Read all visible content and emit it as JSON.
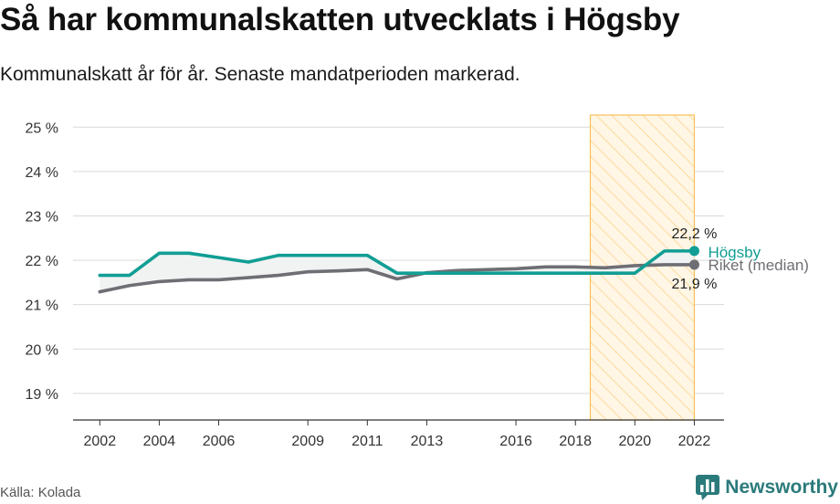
{
  "title": "Så har kommunalskatten utvecklats i Högsby",
  "subtitle": "Kommunalskatt år för år. Senaste mandatperioden markerad.",
  "source": "Källa: Kolada",
  "brand": {
    "name": "Newsworthy",
    "icon": "bar-chart-speech-bubble-icon"
  },
  "colors": {
    "hogsby": "#119e94",
    "riket": "#6e6e74",
    "highlight_fill": "#fff6e6",
    "highlight_stroke": "#f7c15a",
    "grid": "#d9d9d9",
    "brand": "#2b7a7b"
  },
  "chart_data": {
    "type": "line",
    "x_ticks": [
      2002,
      2004,
      2006,
      2009,
      2011,
      2013,
      2016,
      2018,
      2020,
      2022
    ],
    "y_ticks": [
      19,
      20,
      21,
      22,
      23,
      24,
      25
    ],
    "y_tick_labels": [
      "19 %",
      "20 %",
      "21 %",
      "22 %",
      "23 %",
      "24 %",
      "25 %"
    ],
    "ylim": [
      18.4,
      25.5
    ],
    "xlim": [
      2001.1,
      2023.0
    ],
    "highlight_range": [
      2018.5,
      2022
    ],
    "series": [
      {
        "name": "Högsby",
        "color_key": "hogsby",
        "x": [
          2002,
          2003,
          2004,
          2005,
          2006,
          2007,
          2008,
          2009,
          2010,
          2011,
          2012,
          2013,
          2014,
          2015,
          2016,
          2017,
          2018,
          2019,
          2020,
          2021,
          2022
        ],
        "values": [
          21.66,
          21.66,
          22.16,
          22.16,
          22.06,
          21.96,
          22.11,
          22.11,
          22.11,
          22.11,
          21.71,
          21.71,
          21.71,
          21.71,
          21.71,
          21.71,
          21.71,
          21.71,
          21.71,
          22.21,
          22.21
        ],
        "end_label": "22,2 %"
      },
      {
        "name": "Riket (median)",
        "color_key": "riket",
        "x": [
          2002,
          2003,
          2004,
          2005,
          2006,
          2007,
          2008,
          2009,
          2010,
          2011,
          2012,
          2013,
          2014,
          2015,
          2016,
          2017,
          2018,
          2019,
          2020,
          2021,
          2022
        ],
        "values": [
          21.29,
          21.43,
          21.52,
          21.56,
          21.56,
          21.61,
          21.66,
          21.74,
          21.76,
          21.79,
          21.58,
          21.72,
          21.77,
          21.79,
          21.81,
          21.85,
          21.85,
          21.83,
          21.88,
          21.9,
          21.9
        ],
        "end_label": "21,9 %"
      }
    ]
  }
}
